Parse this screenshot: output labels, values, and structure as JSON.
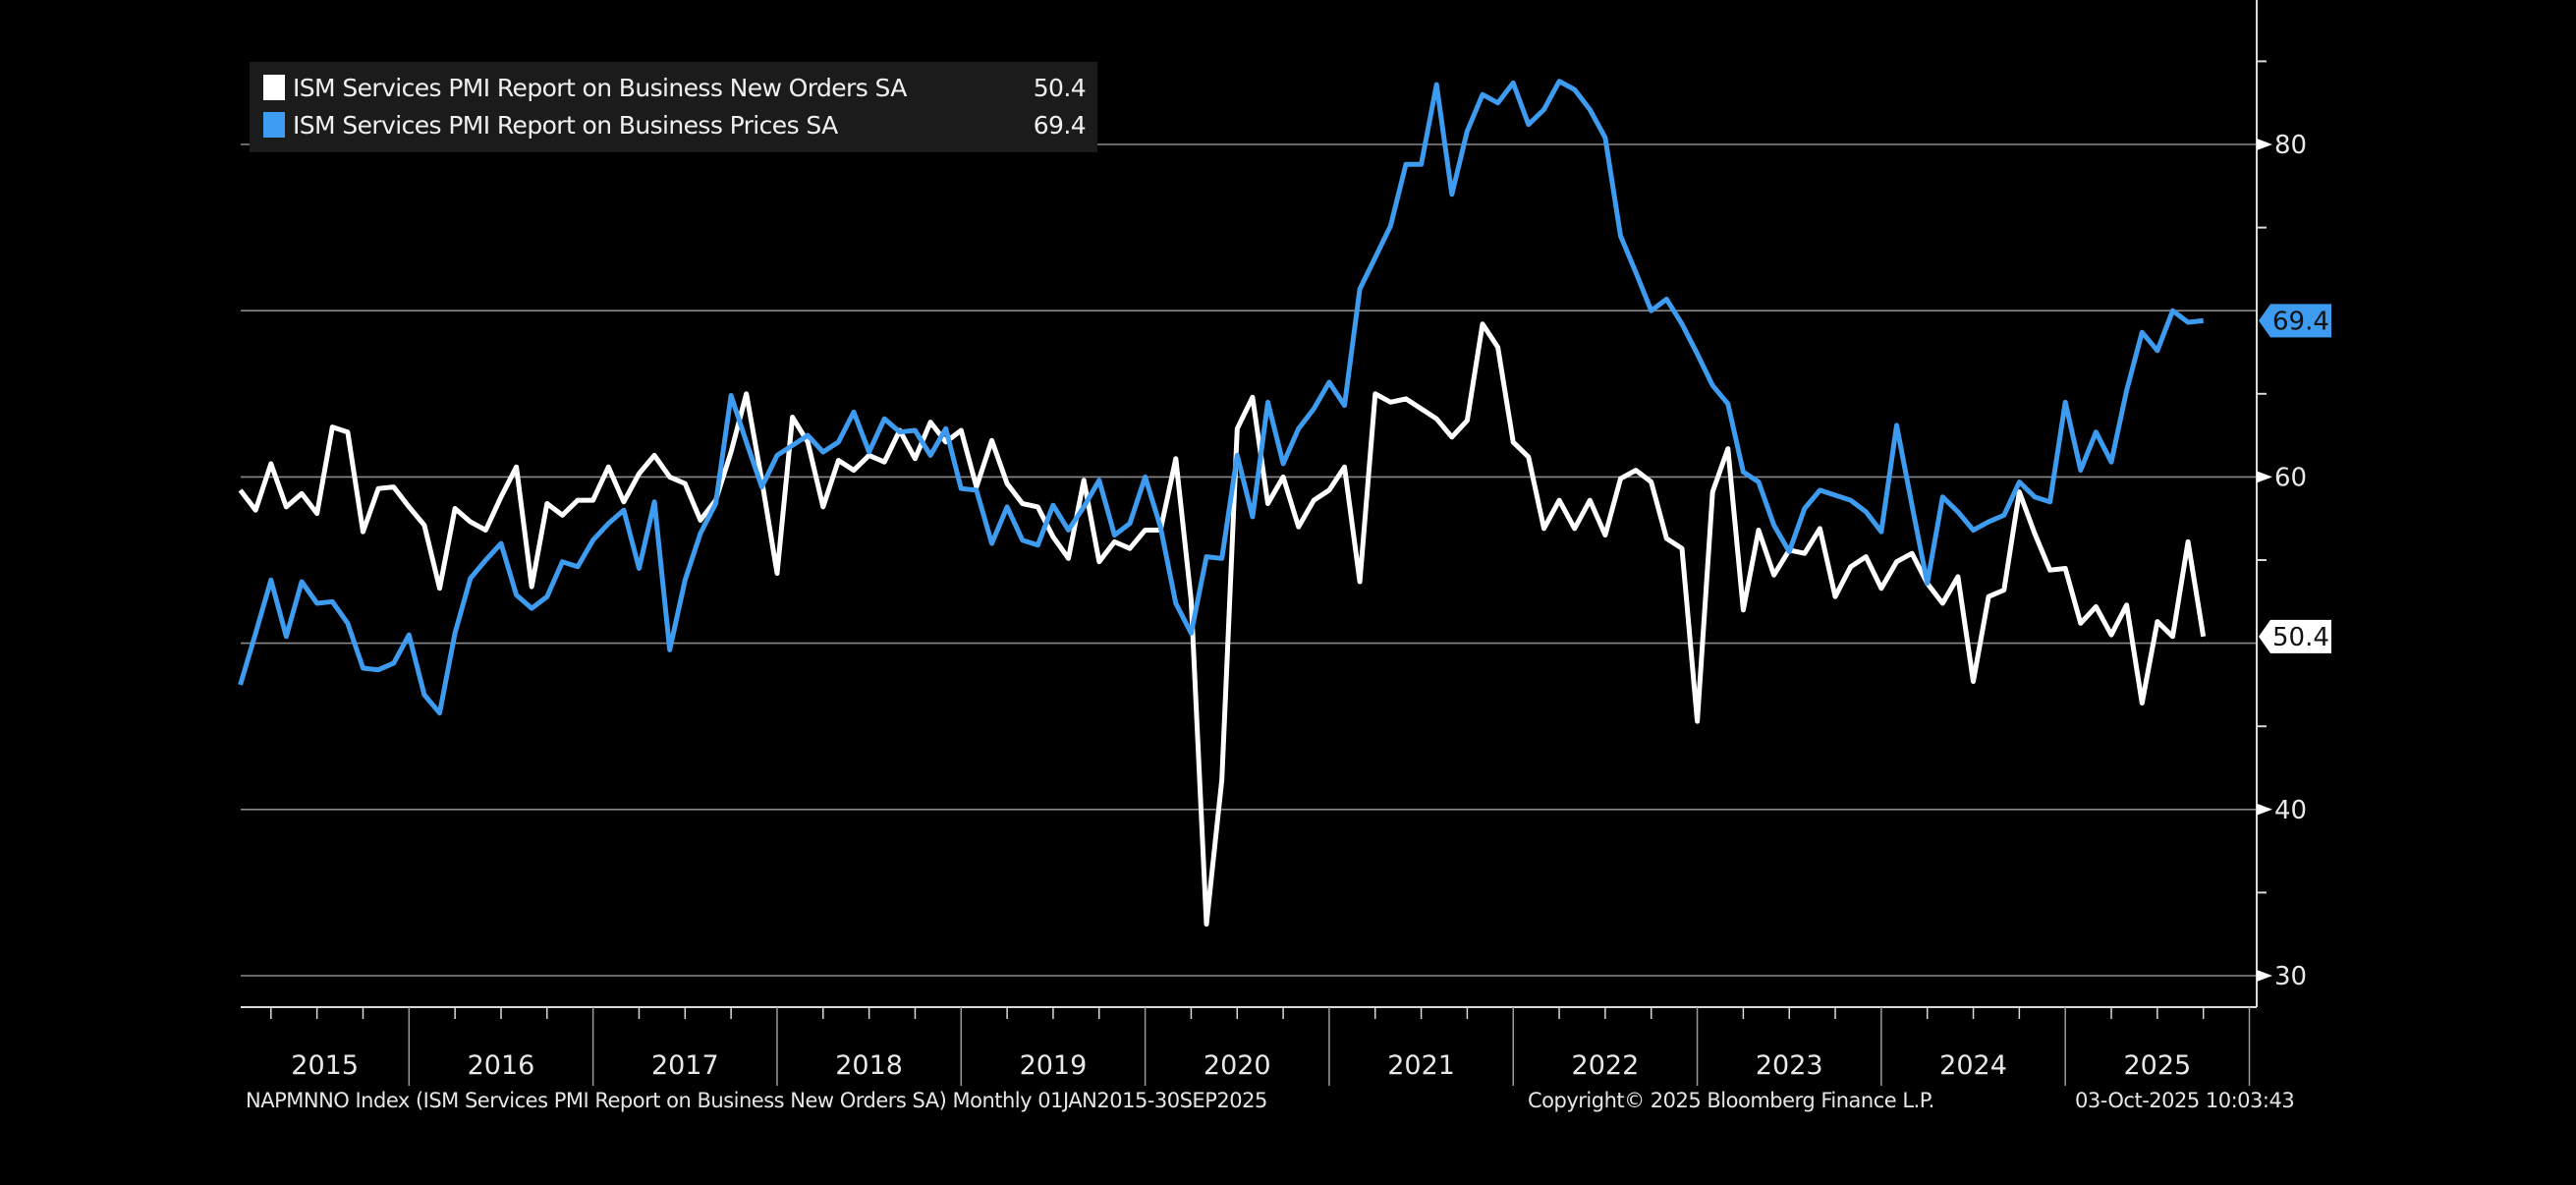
{
  "chart_data": {
    "type": "line",
    "x_start": "2015-01",
    "x_end": "2025-09",
    "frequency": "Monthly",
    "x_tick_labels": [
      "2015",
      "2016",
      "2017",
      "2018",
      "2019",
      "2020",
      "2021",
      "2022",
      "2023",
      "2024",
      "2025"
    ],
    "y_tick_labels": [
      30,
      40,
      60,
      80
    ],
    "y_gridlines": [
      30,
      40,
      50,
      60,
      70,
      80
    ],
    "ylim": [
      28,
      89
    ],
    "grid": true,
    "legend_position": "top-left",
    "y_axis_side": "right",
    "series": [
      {
        "name": "ISM Services PMI Report on Business New Orders SA",
        "last_value": "50.4",
        "color": "#ffffff",
        "values": [
          59.2,
          58.0,
          60.8,
          58.2,
          59.0,
          57.8,
          63.0,
          62.7,
          56.7,
          59.3,
          59.4,
          58.2,
          57.1,
          53.3,
          58.1,
          57.3,
          56.8,
          58.8,
          60.6,
          53.4,
          58.4,
          57.7,
          58.6,
          58.6,
          60.6,
          58.5,
          60.2,
          61.3,
          60.0,
          59.6,
          57.4,
          58.6,
          61.5,
          65.0,
          59.8,
          54.2,
          63.6,
          62.1,
          58.2,
          61.0,
          60.4,
          61.3,
          60.9,
          62.8,
          61.1,
          63.3,
          62.1,
          62.8,
          59.4,
          62.2,
          59.6,
          58.4,
          58.2,
          56.4,
          55.1,
          59.8,
          54.9,
          56.1,
          55.7,
          56.8,
          56.8,
          61.1,
          52.6,
          33.1,
          41.8,
          62.9,
          64.8,
          58.4,
          60.0,
          57.0,
          58.6,
          59.2,
          60.6,
          53.7,
          65.0,
          64.5,
          64.7,
          64.1,
          63.5,
          62.4,
          63.4,
          69.2,
          67.8,
          62.1,
          61.2,
          56.9,
          58.6,
          56.9,
          58.6,
          56.5,
          59.9,
          60.4,
          59.7,
          56.3,
          55.7,
          45.3,
          59.1,
          61.7,
          52.0,
          56.8,
          54.1,
          55.6,
          55.4,
          56.9,
          52.8,
          54.6,
          55.2,
          53.3,
          54.9,
          55.4,
          53.6,
          52.4,
          54.0,
          47.7,
          52.8,
          53.2,
          59.1,
          56.6,
          54.4,
          54.5,
          51.2,
          52.2,
          50.5,
          52.3,
          46.4,
          51.3,
          50.4,
          56.1,
          50.4
        ]
      },
      {
        "name": "ISM Services PMI Report on Business Prices SA",
        "last_value": "69.4",
        "color": "#3d9bf0",
        "values": [
          47.5,
          50.6,
          53.8,
          50.4,
          53.7,
          52.4,
          52.5,
          51.2,
          48.5,
          48.4,
          48.8,
          50.5,
          46.9,
          45.8,
          50.6,
          53.9,
          55.0,
          56.0,
          52.9,
          52.1,
          52.8,
          54.9,
          54.6,
          56.2,
          57.2,
          58.0,
          54.5,
          58.5,
          49.6,
          53.8,
          56.6,
          58.4,
          64.9,
          62.1,
          59.4,
          61.3,
          61.9,
          62.5,
          61.5,
          62.1,
          63.9,
          61.5,
          63.5,
          62.7,
          62.8,
          61.3,
          62.9,
          59.3,
          59.2,
          56.0,
          58.2,
          56.2,
          55.9,
          58.3,
          56.8,
          58.2,
          59.8,
          56.5,
          57.2,
          60.0,
          57.0,
          52.4,
          50.6,
          55.2,
          55.1,
          61.3,
          57.6,
          64.5,
          60.8,
          62.9,
          64.1,
          65.7,
          64.3,
          71.3,
          73.2,
          75.1,
          78.8,
          78.8,
          83.6,
          77.0,
          80.8,
          83.0,
          82.5,
          83.7,
          81.2,
          82.1,
          83.8,
          83.3,
          82.1,
          80.4,
          74.5,
          72.3,
          70.0,
          70.7,
          69.2,
          67.4,
          65.5,
          64.4,
          60.3,
          59.7,
          57.1,
          55.5,
          58.1,
          59.2,
          58.9,
          58.6,
          57.9,
          56.7,
          63.1,
          58.3,
          53.6,
          58.8,
          57.9,
          56.8,
          57.3,
          57.7,
          59.7,
          58.8,
          58.5,
          64.5,
          60.4,
          62.7,
          60.9,
          65.2,
          68.7,
          67.6,
          70.0,
          69.3,
          69.4
        ]
      }
    ]
  },
  "footer": {
    "description": "NAPMNNO Index (ISM Services PMI Report on Business New Orders SA) Monthly 01JAN2015-30SEP2025",
    "copyright": "Copyright© 2025 Bloomberg Finance L.P.",
    "timestamp": "03-Oct-2025 10:03:43"
  }
}
